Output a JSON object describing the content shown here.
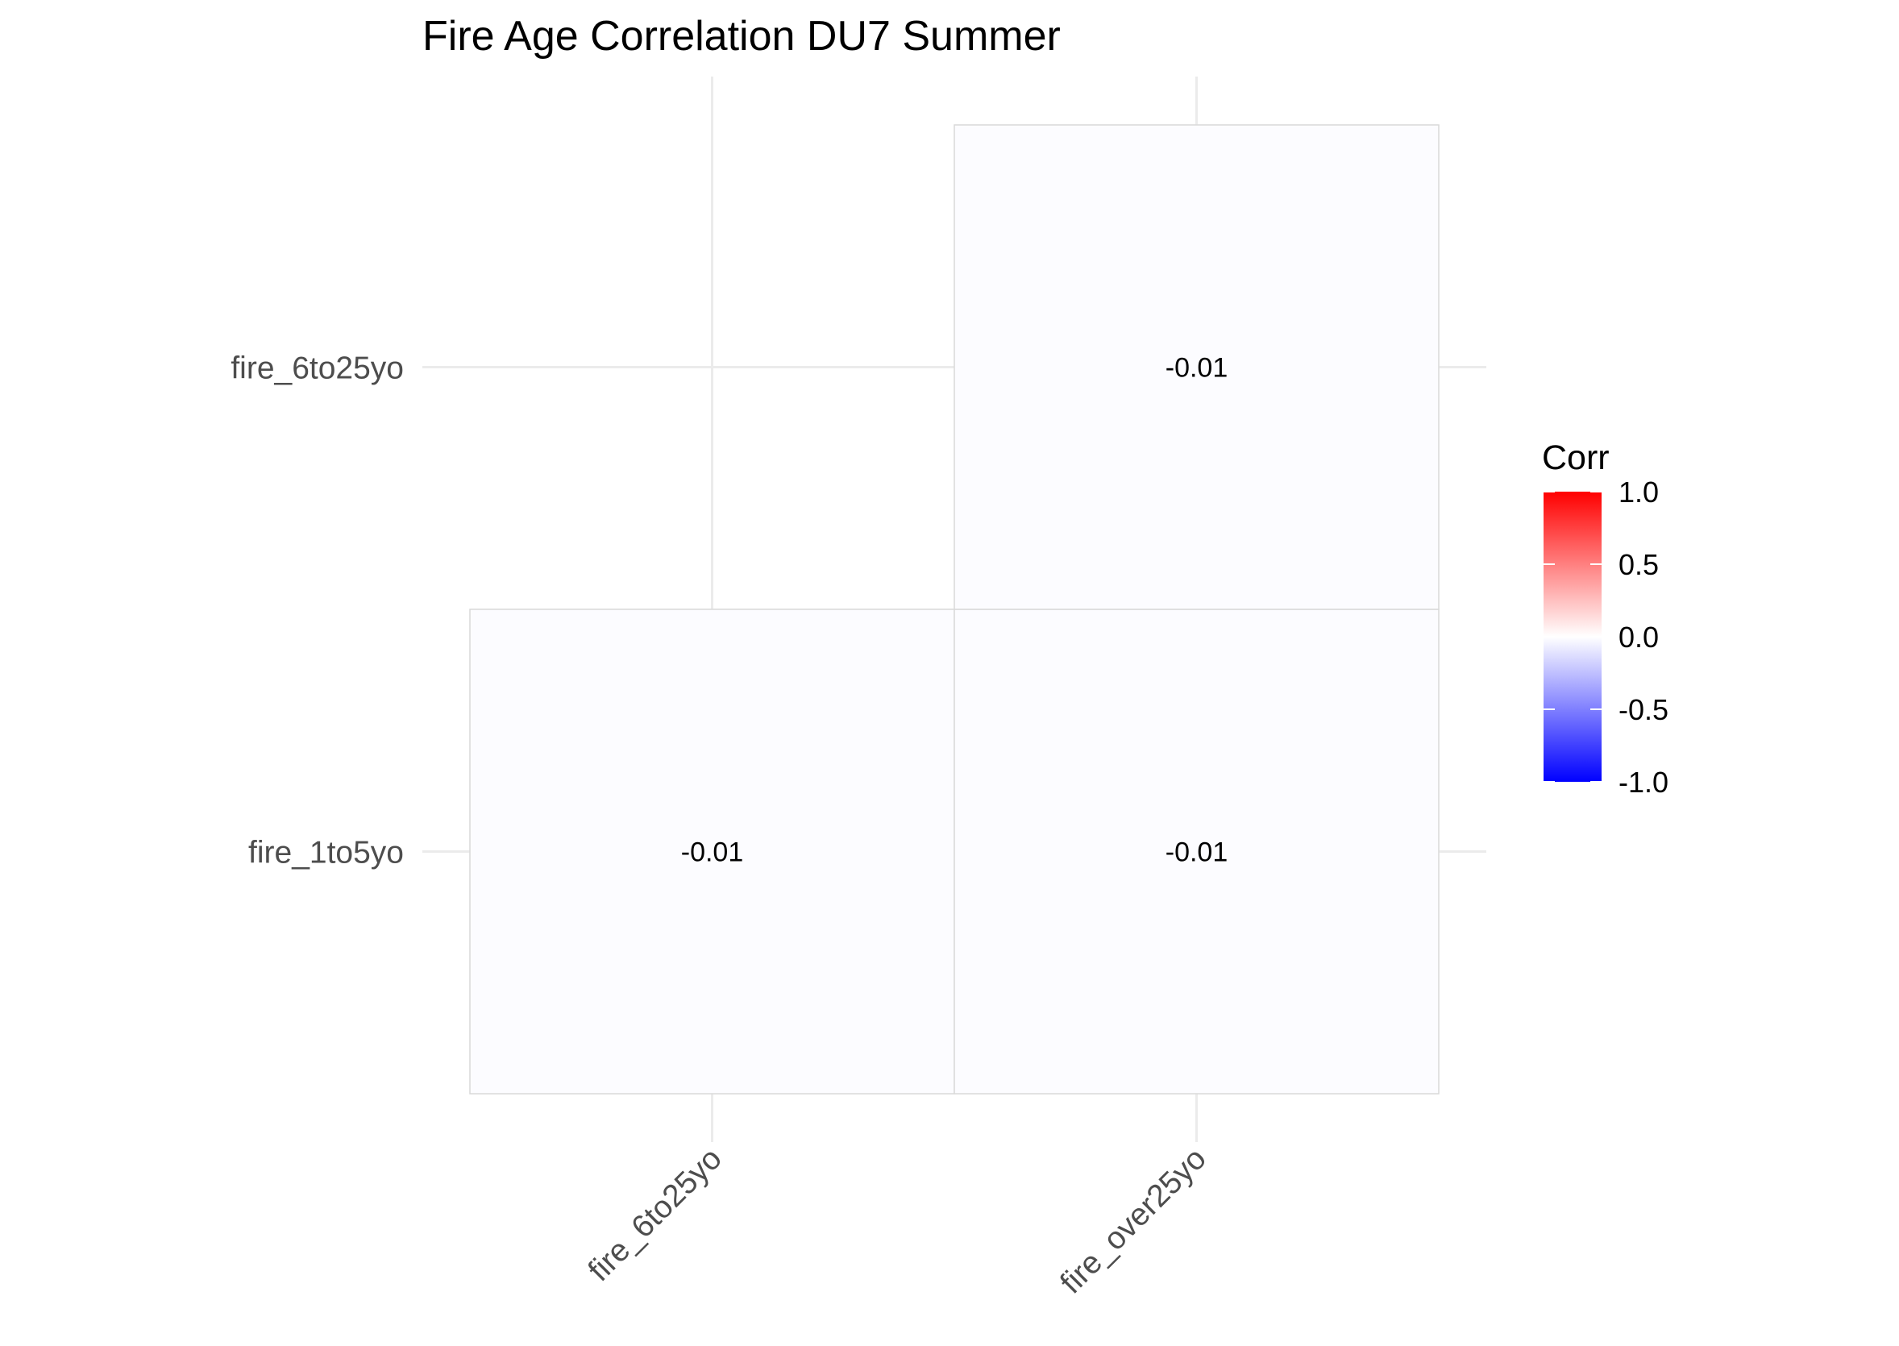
{
  "chart_data": {
    "type": "heatmap",
    "title": "Fire Age Correlation DU7 Summer",
    "x_categories": [
      "fire_6to25yo",
      "fire_over25yo"
    ],
    "y_categories": [
      "fire_1to5yo",
      "fire_6to25yo"
    ],
    "cells": [
      {
        "x": "fire_6to25yo",
        "y": "fire_1to5yo",
        "value": -0.01,
        "label": "-0.01"
      },
      {
        "x": "fire_over25yo",
        "y": "fire_1to5yo",
        "value": -0.01,
        "label": "-0.01"
      },
      {
        "x": "fire_over25yo",
        "y": "fire_6to25yo",
        "value": -0.01,
        "label": "-0.01"
      }
    ],
    "legend": {
      "title": "Corr",
      "placement": "right",
      "limits": [
        -1,
        1
      ],
      "ticks": [
        1.0,
        0.5,
        0.0,
        -0.5,
        -1.0
      ],
      "tick_labels": [
        "1.0",
        "0.5",
        "0.0",
        "-0.5",
        "-1.0"
      ],
      "colors": {
        "low": "#0000ff",
        "mid": "#ffffff",
        "high": "#ff0000"
      }
    },
    "grid": true
  }
}
